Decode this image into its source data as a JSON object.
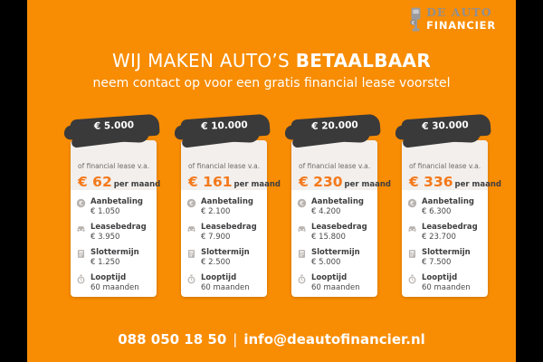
{
  "theme": {
    "background_orange": "#F88C02",
    "pillarbox_black": "#000000",
    "badge_dark": "#3A3A3B",
    "price_orange": "#F4791B",
    "card_header_gray": "#F2EFEC",
    "icon_gray": "#B9B4B0",
    "logo_gray": "#8F8F93",
    "white": "#FFFFFF"
  },
  "logo": {
    "icon": "parking-meter-icon",
    "name_top": "DE AUTO",
    "name_bottom": "FINANCIER"
  },
  "header": {
    "title_regular": "WIJ MAKEN AUTO’S",
    "title_bold": "BETAALBAAR",
    "subtitle": "neem contact op voor een gratis financial lease voorstel"
  },
  "cards": [
    {
      "amount": "€ 5.000",
      "lease_label": "of financial lease v.a.",
      "price": "€ 62",
      "price_suffix": "per maand",
      "items": [
        {
          "icon": "euro-coin-icon",
          "label": "Aanbetaling",
          "value": "€ 1.050"
        },
        {
          "icon": "car-icon",
          "label": "Leasebedrag",
          "value": "€ 3.950"
        },
        {
          "icon": "calculator-icon",
          "label": "Slottermijn",
          "value": "€ 1.250"
        },
        {
          "icon": "stopwatch-icon",
          "label": "Looptijd",
          "value": "60 maanden"
        }
      ]
    },
    {
      "amount": "€ 10.000",
      "lease_label": "of financial lease v.a.",
      "price": "€ 161",
      "price_suffix": "per maand",
      "items": [
        {
          "icon": "euro-coin-icon",
          "label": "Aanbetaling",
          "value": "€ 2.100"
        },
        {
          "icon": "car-icon",
          "label": "Leasebedrag",
          "value": "€ 7.900"
        },
        {
          "icon": "calculator-icon",
          "label": "Slottermijn",
          "value": "€ 2.500"
        },
        {
          "icon": "stopwatch-icon",
          "label": "Looptijd",
          "value": "60 maanden"
        }
      ]
    },
    {
      "amount": "€ 20.000",
      "lease_label": "of financial lease v.a.",
      "price": "€ 230",
      "price_suffix": "per maand",
      "items": [
        {
          "icon": "euro-coin-icon",
          "label": "Aanbetaling",
          "value": "€ 4.200"
        },
        {
          "icon": "car-icon",
          "label": "Leasebedrag",
          "value": "€ 15.800"
        },
        {
          "icon": "calculator-icon",
          "label": "Slottermijn",
          "value": "€ 5.000"
        },
        {
          "icon": "stopwatch-icon",
          "label": "Looptijd",
          "value": "60 maanden"
        }
      ]
    },
    {
      "amount": "€ 30.000",
      "lease_label": "of financial lease v.a.",
      "price": "€ 336",
      "price_suffix": "per maand",
      "items": [
        {
          "icon": "euro-coin-icon",
          "label": "Aanbetaling",
          "value": "€ 6.300"
        },
        {
          "icon": "car-icon",
          "label": "Leasebedrag",
          "value": "€ 23.700"
        },
        {
          "icon": "calculator-icon",
          "label": "Slottermijn",
          "value": "€ 7.500"
        },
        {
          "icon": "stopwatch-icon",
          "label": "Looptijd",
          "value": "60 maanden"
        }
      ]
    }
  ],
  "footer": {
    "phone": "088 050 18 50",
    "separator": "|",
    "email": "info@deautofinancier.nl"
  }
}
